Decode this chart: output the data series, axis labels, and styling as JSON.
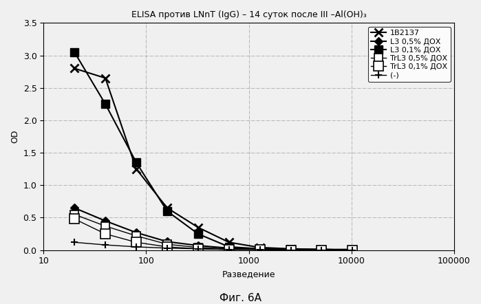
{
  "title": "ELISA против LNnT (IgG) – 14 суток после III –Al(OH)₃",
  "xlabel": "Разведение",
  "ylabel": "OD",
  "caption": "Фиг. 6А",
  "xlim": [
    10,
    100000
  ],
  "ylim": [
    0,
    3.5
  ],
  "yticks": [
    0,
    0.5,
    1.0,
    1.5,
    2.0,
    2.5,
    3.0,
    3.5
  ],
  "xticks": [
    10,
    100,
    1000,
    10000,
    100000
  ],
  "series": [
    {
      "label": "1В21З7",
      "x": [
        20,
        40,
        80,
        160,
        320,
        640,
        1280,
        2560,
        5120,
        10240
      ],
      "y": [
        2.8,
        2.65,
        1.25,
        0.65,
        0.35,
        0.12,
        0.04,
        0.02,
        0.01,
        0.01
      ],
      "color": "#000000",
      "marker": "x",
      "markersize": 9,
      "markeredgewidth": 2.0,
      "linestyle": "-",
      "linewidth": 1.5,
      "markerfacecolor": "#000000"
    },
    {
      "label": "L3 0,5% ДОХ",
      "x": [
        20,
        40,
        80,
        160,
        320,
        640,
        1280,
        2560,
        5120,
        10240
      ],
      "y": [
        0.65,
        0.45,
        0.27,
        0.13,
        0.07,
        0.03,
        0.02,
        0.01,
        0.01,
        0.0
      ],
      "color": "#000000",
      "marker": "D",
      "markersize": 6,
      "markeredgewidth": 1.0,
      "linestyle": "-",
      "linewidth": 1.5,
      "markerfacecolor": "#000000"
    },
    {
      "label": "L3 0,1% ДОХ",
      "x": [
        20,
        40,
        80,
        160,
        320,
        640,
        1280,
        2560,
        5120,
        10240
      ],
      "y": [
        3.05,
        2.25,
        1.35,
        0.6,
        0.25,
        0.05,
        0.02,
        0.01,
        0.01,
        0.0
      ],
      "color": "#000000",
      "marker": "s",
      "markersize": 8,
      "markeredgewidth": 1.0,
      "linestyle": "-",
      "linewidth": 1.5,
      "markerfacecolor": "#000000"
    },
    {
      "label": "TrL3 0,5% ДОХ",
      "x": [
        20,
        40,
        80,
        160,
        320,
        640,
        1280,
        2560,
        5120,
        10240
      ],
      "y": [
        0.55,
        0.37,
        0.22,
        0.09,
        0.04,
        0.02,
        0.01,
        0.01,
        0.0,
        0.0
      ],
      "color": "#000000",
      "marker": "s",
      "markersize": 8,
      "markeredgewidth": 1.2,
      "linestyle": "-",
      "linewidth": 1.0,
      "markerfacecolor": "white"
    },
    {
      "label": "TrL3 0,1% ДОХ",
      "x": [
        20,
        40,
        80,
        160,
        320,
        640,
        1280,
        2560,
        5120,
        10240
      ],
      "y": [
        0.48,
        0.25,
        0.12,
        0.05,
        0.02,
        0.01,
        0.01,
        0.0,
        0.0,
        0.0
      ],
      "color": "#000000",
      "marker": "s",
      "markersize": 10,
      "markeredgewidth": 1.2,
      "linestyle": "-",
      "linewidth": 1.0,
      "markerfacecolor": "white"
    },
    {
      "label": "(-)",
      "x": [
        20,
        40,
        80,
        160,
        320,
        640,
        1280,
        2560,
        5120,
        10240
      ],
      "y": [
        0.12,
        0.08,
        0.05,
        0.03,
        0.02,
        0.01,
        0.01,
        0.0,
        0.0,
        0.0
      ],
      "color": "#000000",
      "marker": "+",
      "markersize": 7,
      "markeredgewidth": 1.5,
      "linestyle": "-",
      "linewidth": 1.0,
      "markerfacecolor": "#000000"
    }
  ],
  "grid_linestyle": "-.",
  "grid_color": "#999999",
  "grid_linewidth": 0.5,
  "background_color": "#f0f0f0",
  "plot_bg_color": "#f0f0f0",
  "legend_fontsize": 8,
  "title_fontsize": 9,
  "axis_fontsize": 9,
  "caption_fontsize": 11
}
